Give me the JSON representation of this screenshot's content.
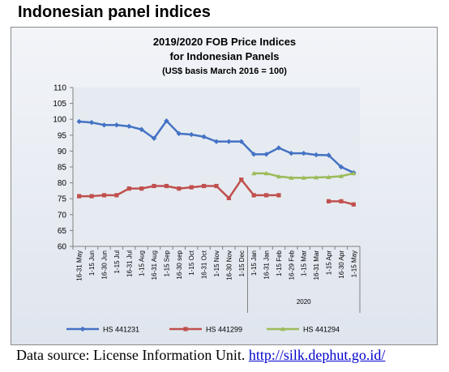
{
  "page": {
    "heading": "Indonesian panel indices",
    "source_prefix": "Data source: License Information Unit. ",
    "source_link": "http://silk.dephut.go.id/"
  },
  "colors": {
    "series_1": "#4472c4",
    "series_2": "#c0504d",
    "series_3": "#9bbb59",
    "plot_background": "#e6ebf1",
    "page_background": "#ffffff"
  },
  "chart_data": {
    "type": "line",
    "title": "2019/2020 FOB Price Indices",
    "subtitle_1": "for Indonesian Panels",
    "subtitle_2": "(US$ basis March 2016 = 100)",
    "ylim": [
      60,
      110
    ],
    "yticks": [
      60,
      65,
      70,
      75,
      80,
      85,
      90,
      95,
      100,
      105,
      110
    ],
    "grid": false,
    "legend_position": "bottom",
    "categories": [
      "16-31 May",
      "1-15 Jun",
      "16-30 Jun",
      "1-15 Jul",
      "16-31 Jul",
      "1-15 Aug",
      "16-31 Aug",
      "1-15 Sep",
      "16-30 sep",
      "1-15 Oct",
      "16-31 Oct",
      "1-15 Nov",
      "16-30 Nov",
      "1-15 Dec",
      "1-15 Jan",
      "16-31 Jan",
      "1-15 Feb",
      "16-29 Feb",
      "1-15 Mar",
      "16-31 Mar",
      "1-15 Apr",
      "16-30 Apr",
      "1-15 May"
    ],
    "year_group_label": "2020",
    "year_group_start_index": 14,
    "series": [
      {
        "name": "HS 441231",
        "values": [
          99.3,
          99.0,
          98.2,
          98.2,
          97.8,
          96.8,
          94.0,
          99.5,
          95.5,
          95.2,
          94.5,
          93.0,
          93.0,
          93.0,
          89.0,
          89.0,
          91.0,
          89.3,
          89.3,
          88.8,
          88.7,
          85.0,
          83.2
        ]
      },
      {
        "name": "HS 441299",
        "values": [
          75.8,
          75.8,
          76.1,
          76.1,
          78.2,
          78.2,
          79.0,
          79.0,
          78.2,
          78.6,
          79.0,
          79.0,
          75.2,
          81.0,
          76.1,
          76.1,
          76.1,
          null,
          null,
          null,
          74.2,
          74.2,
          73.2
        ]
      },
      {
        "name": "HS 441294",
        "values": [
          null,
          null,
          null,
          null,
          null,
          null,
          null,
          null,
          null,
          null,
          null,
          null,
          null,
          null,
          83.0,
          83.0,
          82.0,
          81.6,
          81.6,
          81.7,
          81.8,
          82.1,
          83.0
        ]
      }
    ]
  }
}
